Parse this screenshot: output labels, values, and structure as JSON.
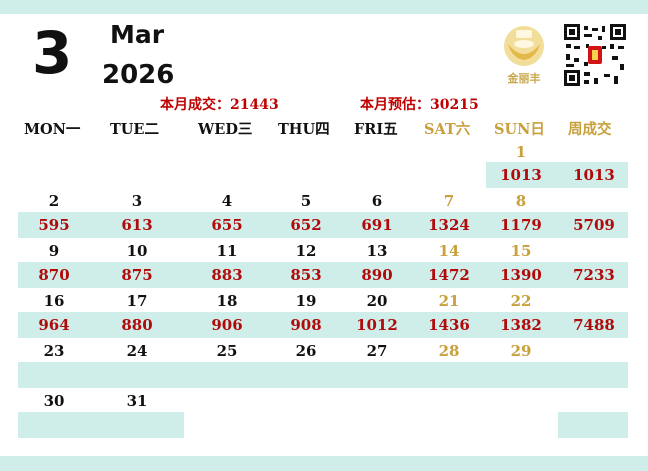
{
  "header": {
    "day": "3",
    "month": "Mar",
    "year": "2026",
    "month_sales_label": "本月成交：",
    "month_sales_value": "21443",
    "month_est_label": "本月预估：",
    "month_est_value": "30215",
    "logo_text": "金丽丰"
  },
  "colors": {
    "band": "#cfeeea",
    "value_red": "#b00a0a",
    "weekend_gold": "#c8a03c"
  },
  "weekdays": [
    "MON一",
    "TUE二",
    "WED三",
    "THU四",
    "FRI五",
    "SAT六",
    "SUN日",
    "周成交"
  ],
  "weeks": [
    {
      "dates": [
        "",
        "",
        "",
        "",
        "",
        "",
        "1"
      ],
      "values": [
        "",
        "",
        "",
        "",
        "",
        "",
        "1013"
      ],
      "total": "1013"
    },
    {
      "dates": [
        "2",
        "3",
        "4",
        "5",
        "6",
        "7",
        "8"
      ],
      "values": [
        "595",
        "613",
        "655",
        "652",
        "691",
        "1324",
        "1179"
      ],
      "total": "5709"
    },
    {
      "dates": [
        "9",
        "10",
        "11",
        "12",
        "13",
        "14",
        "15"
      ],
      "values": [
        "870",
        "875",
        "883",
        "853",
        "890",
        "1472",
        "1390"
      ],
      "total": "7233"
    },
    {
      "dates": [
        "16",
        "17",
        "18",
        "19",
        "20",
        "21",
        "22"
      ],
      "values": [
        "964",
        "880",
        "906",
        "908",
        "1012",
        "1436",
        "1382"
      ],
      "total": "7488"
    },
    {
      "dates": [
        "23",
        "24",
        "25",
        "26",
        "27",
        "28",
        "29"
      ],
      "values": [
        "",
        "",
        "",
        "",
        "",
        "",
        ""
      ],
      "total": ""
    },
    {
      "dates": [
        "30",
        "31",
        "",
        "",
        "",
        "",
        ""
      ],
      "values": [
        "",
        "",
        "",
        "",
        "",
        "",
        ""
      ],
      "total": ""
    }
  ]
}
